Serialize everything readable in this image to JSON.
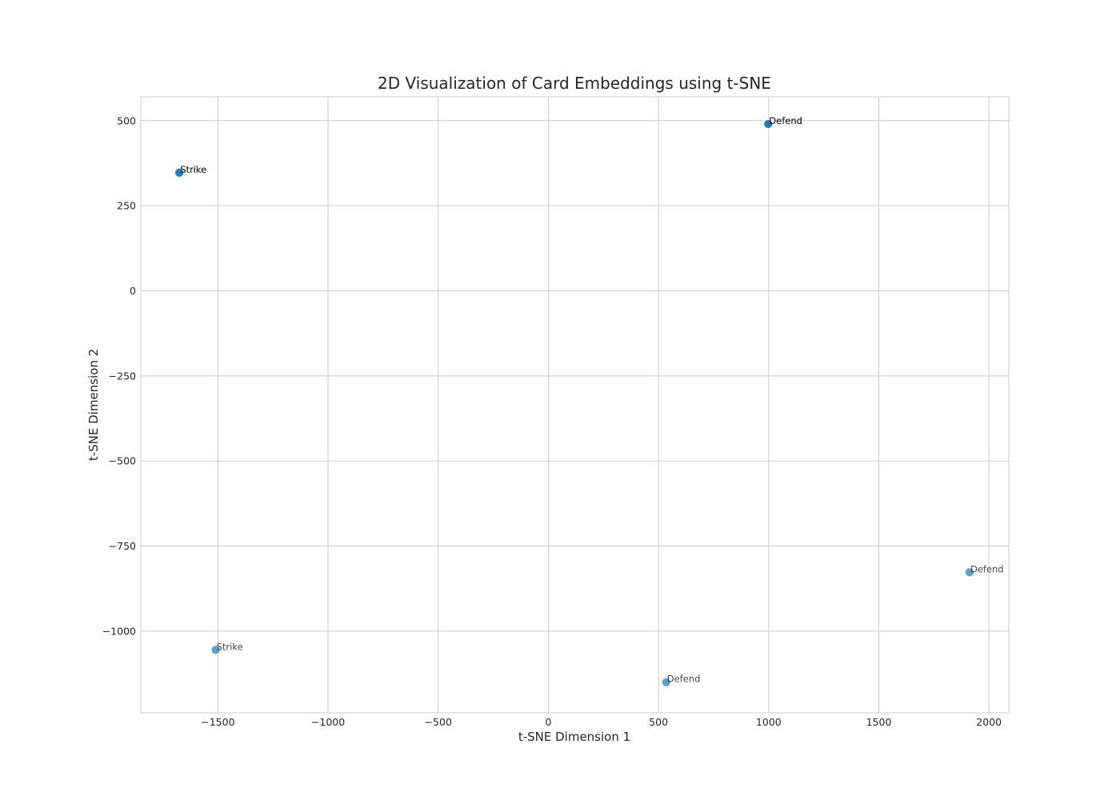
{
  "chart_data": {
    "type": "scatter",
    "title": "2D Visualization of Card Embeddings using t-SNE",
    "xlabel": "t-SNE Dimension 1",
    "ylabel": "t-SNE Dimension 2",
    "xlim": [
      -1850,
      2090
    ],
    "ylim": [
      -1240,
      570
    ],
    "xticks": [
      -1500,
      -1000,
      -500,
      0,
      500,
      1000,
      1500,
      2000
    ],
    "yticks": [
      500,
      250,
      0,
      -250,
      -500,
      -750,
      -1000
    ],
    "grid": true,
    "marker_color": "#1f77b4",
    "marker_alpha": 0.7,
    "points": [
      {
        "x": -1675,
        "y": 347,
        "label": "Strike"
      },
      {
        "x": -1675,
        "y": 347,
        "label": "Strike"
      },
      {
        "x": -1675,
        "y": 347,
        "label": "Strike"
      },
      {
        "x": 998,
        "y": 490,
        "label": "Defend"
      },
      {
        "x": 998,
        "y": 490,
        "label": "Defend"
      },
      {
        "x": 998,
        "y": 490,
        "label": "Defend"
      },
      {
        "x": -1510,
        "y": -1055,
        "label": "Strike"
      },
      {
        "x": 535,
        "y": -1150,
        "label": "Defend"
      },
      {
        "x": 1912,
        "y": -827,
        "label": "Defend"
      }
    ]
  }
}
